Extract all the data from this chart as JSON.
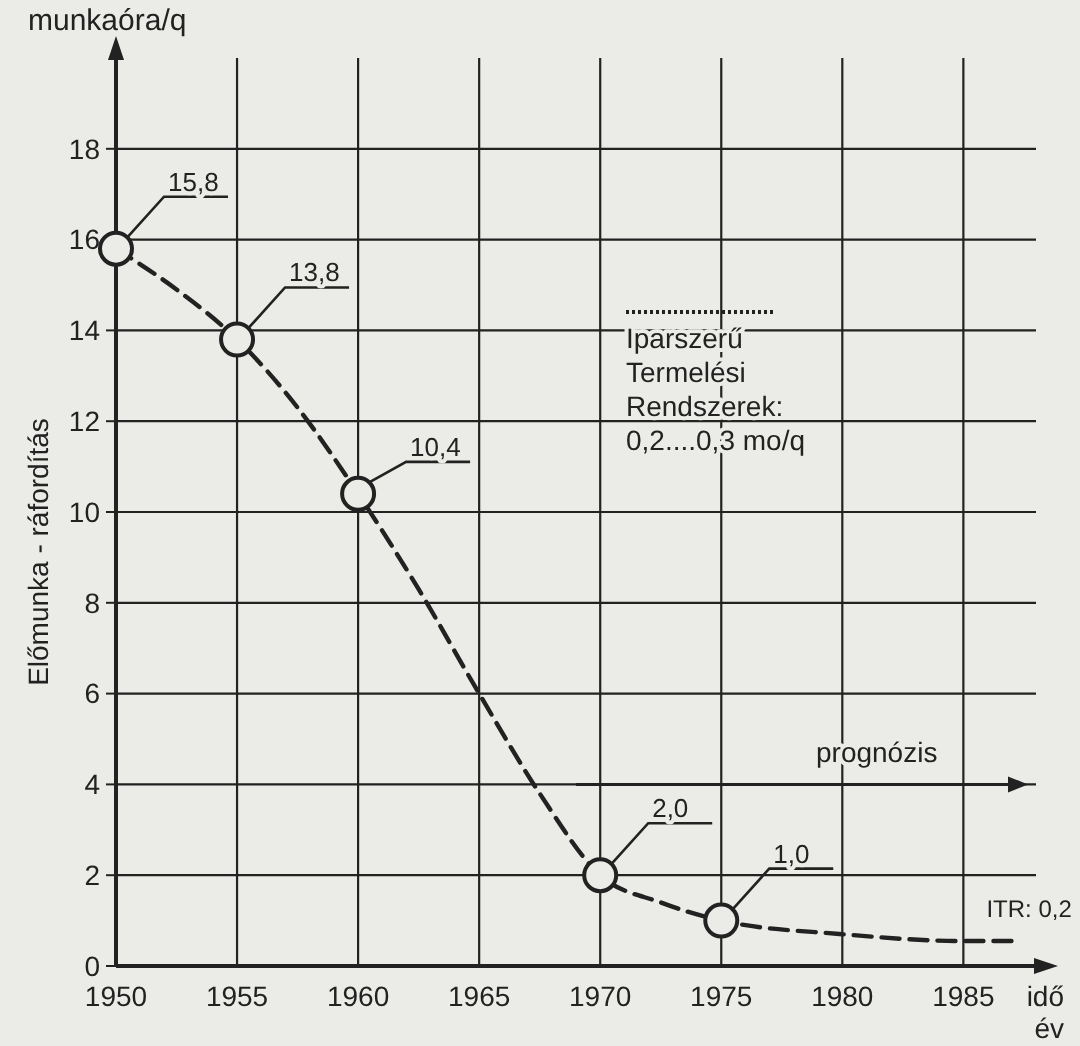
{
  "chart_data": {
    "type": "line",
    "xlabel": "idő\név",
    "ylabel": "Előmunka - ráfordítás",
    "xlim": [
      1950,
      1988
    ],
    "ylim": [
      0,
      20
    ],
    "xticks": [
      1950,
      1955,
      1960,
      1965,
      1970,
      1975,
      1980,
      1985
    ],
    "yticks": [
      0,
      2,
      4,
      6,
      8,
      10,
      12,
      14,
      16,
      18
    ],
    "grid": true,
    "series": [
      {
        "color": "#222222",
        "line_style": "dashed",
        "marker": "none",
        "x": [
          1950,
          1952.5,
          1955,
          1957.5,
          1960,
          1962.5,
          1965,
          1967.5,
          1970,
          1972.5,
          1975,
          1980,
          1985,
          1987
        ],
        "values": [
          15.8,
          14.9,
          13.8,
          12.3,
          10.4,
          8.3,
          6.0,
          3.8,
          2.0,
          1.4,
          1.0,
          0.7,
          0.55,
          0.55
        ]
      },
      {
        "type": "scatter",
        "color": "#222222",
        "marker": "circle",
        "x": [
          1950,
          1955,
          1960,
          1970,
          1975
        ],
        "values": [
          15.8,
          13.8,
          10.4,
          2.0,
          1.0
        ],
        "value_labels": [
          "15,8",
          "13,8",
          "10,4",
          "2,0",
          "1,0"
        ]
      }
    ],
    "annotations": [
      "munkaóra/q",
      "prognózis",
      "Iparszerű\nTermelési\nRendszerek:\n0,2....0,3 mo/q",
      {
        "text": "ITR: 0,2",
        "x": 1987,
        "y": 0.55
      }
    ]
  }
}
